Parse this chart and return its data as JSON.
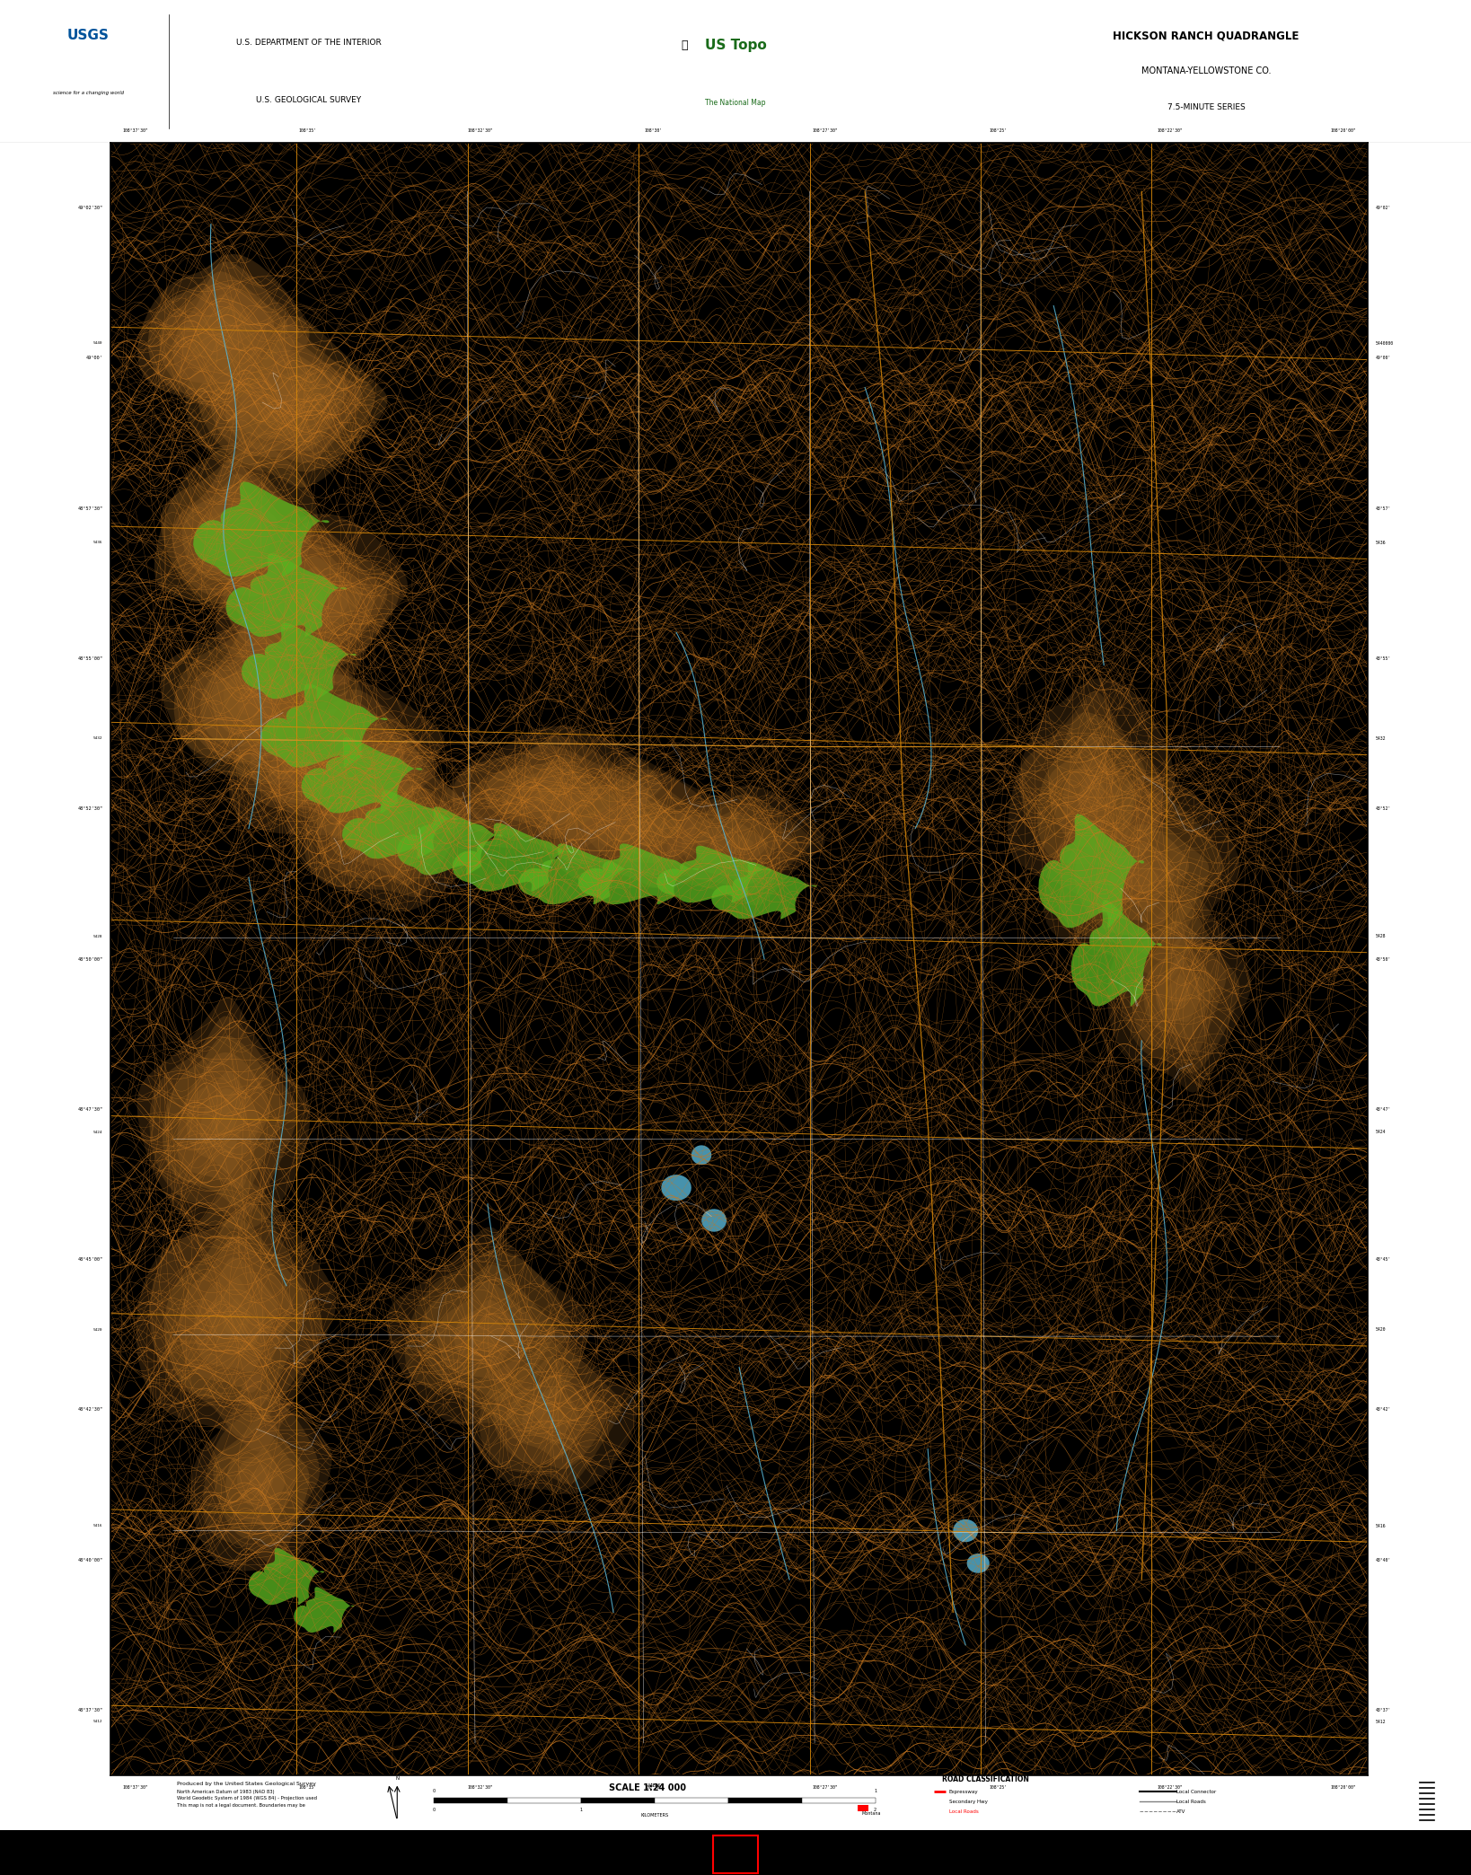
{
  "title": "HICKSON RANCH QUADRANGLE",
  "subtitle1": "MONTANA-YELLOWSTONE CO.",
  "subtitle2": "7.5-MINUTE SERIES",
  "dept_line1": "U.S. DEPARTMENT OF THE INTERIOR",
  "dept_line2": "U.S. GEOLOGICAL SURVEY",
  "scale_text": "SCALE 1:24 000",
  "produced_by": "Produced by the United States Geological Survey",
  "map_bg": "#000000",
  "border_bg": "#ffffff",
  "contour_color": "#c87820",
  "water_color": "#5ab8d8",
  "grid_color": "#d4860a",
  "veg_color": "#5ab020",
  "road_color": "#ffffff",
  "brown_color": "#8B5A20",
  "fig_width": 16.38,
  "fig_height": 20.88,
  "map_l": 0.075,
  "map_r": 0.93,
  "map_b": 0.053,
  "map_t": 0.924
}
